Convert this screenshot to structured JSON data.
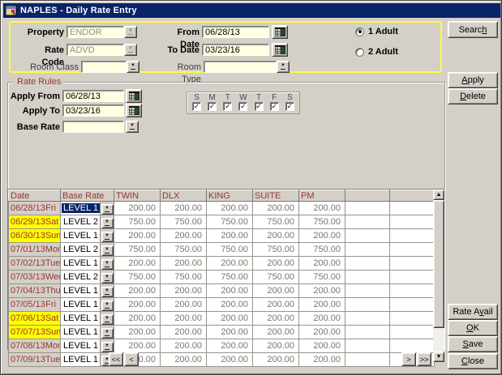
{
  "window": {
    "title": "NAPLES - Daily Rate Entry"
  },
  "icons": {
    "combo_arrow": "▼",
    "check": "✓",
    "scroll_up": "▲",
    "scroll_down": "▼",
    "app_icon": "form-window-icon",
    "calendar_icon": "calendar-grid"
  },
  "filter": {
    "property": {
      "label": "Property",
      "value": "ENDOR"
    },
    "rate_code": {
      "label": "Rate Code",
      "value": "ADVD"
    },
    "room_class": {
      "label": "Room Class",
      "value": ""
    },
    "from_date": {
      "label": "From Date",
      "value": "06/28/13"
    },
    "to_date": {
      "label": "To Date",
      "value": "03/23/16"
    },
    "room_type": {
      "label": "Room Type",
      "value": ""
    },
    "adults": [
      {
        "label": "1 Adult",
        "selected": true
      },
      {
        "label": "2 Adult",
        "selected": false
      }
    ]
  },
  "rate_rules": {
    "title": "Rate Rules",
    "apply_from": {
      "label": "Apply From",
      "value": "06/28/13"
    },
    "apply_to": {
      "label": "Apply To",
      "value": "03/23/16"
    },
    "base_rate": {
      "label": "Base Rate",
      "value": ""
    },
    "days": [
      {
        "letter": "S",
        "checked": true
      },
      {
        "letter": "M",
        "checked": true
      },
      {
        "letter": "T",
        "checked": true
      },
      {
        "letter": "W",
        "checked": true
      },
      {
        "letter": "T",
        "checked": true
      },
      {
        "letter": "F",
        "checked": true
      },
      {
        "letter": "S",
        "checked": true
      }
    ]
  },
  "actions": {
    "search": {
      "pre": "Searc",
      "key": "h",
      "post": ""
    },
    "apply": {
      "pre": "",
      "key": "A",
      "post": "pply"
    },
    "delete": {
      "pre": "",
      "key": "D",
      "post": "elete"
    },
    "rate_avail": {
      "pre": "Rate A",
      "key": "v",
      "post": "ail"
    },
    "ok": {
      "pre": "",
      "key": "O",
      "post": "K"
    },
    "save": {
      "pre": "",
      "key": "S",
      "post": "ave"
    },
    "close": {
      "pre": "",
      "key": "C",
      "post": "lose"
    }
  },
  "pager": {
    "first": "<<",
    "prev": "<",
    "next": ">",
    "last": ">>"
  },
  "table": {
    "columns": [
      "Date",
      "Base Rate",
      "TWIN",
      "DLX",
      "KING",
      "SUITE",
      "PM",
      "",
      ""
    ],
    "rows": [
      {
        "date": "06/28/13",
        "day": "Fri",
        "weekend": false,
        "base_rate": "LEVEL 1",
        "selected": true,
        "rates": [
          "200.00",
          "200.00",
          "200.00",
          "200.00",
          "200.00"
        ]
      },
      {
        "date": "06/29/13",
        "day": "Sat",
        "weekend": true,
        "base_rate": "LEVEL 2",
        "selected": false,
        "rates": [
          "750.00",
          "750.00",
          "750.00",
          "750.00",
          "750.00"
        ]
      },
      {
        "date": "06/30/13",
        "day": "Sun",
        "weekend": true,
        "base_rate": "LEVEL 1",
        "selected": false,
        "rates": [
          "200.00",
          "200.00",
          "200.00",
          "200.00",
          "200.00"
        ]
      },
      {
        "date": "07/01/13",
        "day": "Mon",
        "weekend": false,
        "base_rate": "LEVEL 2",
        "selected": false,
        "rates": [
          "750.00",
          "750.00",
          "750.00",
          "750.00",
          "750.00"
        ]
      },
      {
        "date": "07/02/13",
        "day": "Tue",
        "weekend": false,
        "base_rate": "LEVEL 1",
        "selected": false,
        "rates": [
          "200.00",
          "200.00",
          "200.00",
          "200.00",
          "200.00"
        ]
      },
      {
        "date": "07/03/13",
        "day": "Wed",
        "weekend": false,
        "base_rate": "LEVEL 2",
        "selected": false,
        "rates": [
          "750.00",
          "750.00",
          "750.00",
          "750.00",
          "750.00"
        ]
      },
      {
        "date": "07/04/13",
        "day": "Thu",
        "weekend": false,
        "base_rate": "LEVEL 1",
        "selected": false,
        "rates": [
          "200.00",
          "200.00",
          "200.00",
          "200.00",
          "200.00"
        ]
      },
      {
        "date": "07/05/13",
        "day": "Fri",
        "weekend": false,
        "base_rate": "LEVEL 1",
        "selected": false,
        "rates": [
          "200.00",
          "200.00",
          "200.00",
          "200.00",
          "200.00"
        ]
      },
      {
        "date": "07/06/13",
        "day": "Sat",
        "weekend": true,
        "base_rate": "LEVEL 1",
        "selected": false,
        "rates": [
          "200.00",
          "200.00",
          "200.00",
          "200.00",
          "200.00"
        ]
      },
      {
        "date": "07/07/13",
        "day": "Sun",
        "weekend": true,
        "base_rate": "LEVEL 1",
        "selected": false,
        "rates": [
          "200.00",
          "200.00",
          "200.00",
          "200.00",
          "200.00"
        ]
      },
      {
        "date": "07/08/13",
        "day": "Mon",
        "weekend": false,
        "base_rate": "LEVEL 1",
        "selected": false,
        "rates": [
          "200.00",
          "200.00",
          "200.00",
          "200.00",
          "200.00"
        ]
      },
      {
        "date": "07/09/13",
        "day": "Tue",
        "weekend": false,
        "base_rate": "LEVEL 1",
        "selected": false,
        "rates": [
          "200.00",
          "200.00",
          "200.00",
          "200.00",
          "200.00"
        ]
      }
    ]
  },
  "colors": {
    "title_bar": "#0a246a",
    "highlight_weekend": "#ffff00",
    "selected_cell": "#0a246a",
    "field_bg": "#ffffe1",
    "accent_border": "#fdfd3a",
    "header_text": "#9a3534"
  }
}
